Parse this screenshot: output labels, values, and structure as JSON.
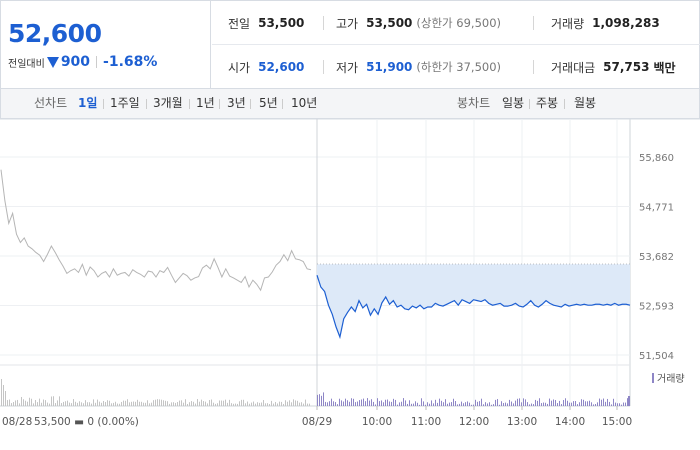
{
  "quote": {
    "current_price": "52,600",
    "change_label": "전일대비",
    "change_amount": "900",
    "change_rate": "-1.68%",
    "direction": "down",
    "colors": {
      "down": "#1d5fd2",
      "up": "#e5322d"
    }
  },
  "stats": {
    "prev_close_label": "전일",
    "prev_close": "53,500",
    "high_label": "고가",
    "high": "53,500",
    "upper_limit": "(상한가 69,500)",
    "volume_label": "거래량",
    "volume": "1,098,283",
    "open_label": "시가",
    "open": "52,600",
    "low_label": "저가",
    "low": "51,900",
    "lower_limit": "(하한가 37,500)",
    "amount_label": "거래대금",
    "amount": "57,753",
    "amount_unit": "백만"
  },
  "period_bar": {
    "line_chart_label": "선차트",
    "line_periods": [
      "1일",
      "1주일",
      "3개월",
      "1년",
      "3년",
      "5년",
      "10년"
    ],
    "active_period": "1일",
    "candle_chart_label": "봉차트",
    "candle_periods": [
      "일봉",
      "주봉",
      "월봉"
    ]
  },
  "chart_data": {
    "type": "line",
    "y_ticks": [
      "55,860",
      "54,771",
      "53,682",
      "52,593",
      "51,504"
    ],
    "ylim": [
      51504,
      55860
    ],
    "x_ticks": [
      "08/29",
      "10:00",
      "11:00",
      "12:00",
      "13:00",
      "14:00",
      "15:00"
    ],
    "prev_day_label": "08/28",
    "prev_day_summary": "53,500 ▬ 0 (0.00%)",
    "volume_legend": "거래량",
    "prev_close": 53500,
    "prev_day_series": {
      "color": "#b5b5b5",
      "values": [
        55580,
        54900,
        54400,
        54620,
        54160,
        53980,
        54080,
        53900,
        53840,
        53760,
        53700,
        53560,
        53720,
        53900,
        53760,
        53600,
        53460,
        53300,
        53360,
        53400,
        53320,
        53500,
        53260,
        53440,
        53360,
        53220,
        53300,
        53340,
        53220,
        53400,
        53260,
        53300,
        53320,
        53240,
        53380,
        53320,
        53280,
        53220,
        53350,
        53330,
        53220,
        53360,
        53320,
        53430,
        53260,
        53100,
        53200,
        53300,
        53250,
        53150,
        53200,
        53230,
        53420,
        53480,
        53400,
        53620,
        53430,
        53220,
        53400,
        53240,
        53200,
        53150,
        53100,
        53230,
        53000,
        53150,
        53060,
        52930,
        53200,
        53220,
        53330,
        53480,
        53560,
        53710,
        53580,
        53800,
        53620,
        53600,
        53560,
        53400,
        53380
      ]
    },
    "today_series": {
      "color": "#1d5fd2",
      "fill": "#dde9f8",
      "values": [
        53260,
        53000,
        52900,
        52600,
        52400,
        52120,
        51900,
        52300,
        52440,
        52560,
        52460,
        52700,
        52540,
        52620,
        52380,
        52520,
        52400,
        52650,
        52780,
        52620,
        52700,
        52560,
        52600,
        52520,
        52500,
        52580,
        52540,
        52600,
        52520,
        52560,
        52560,
        52640,
        52600,
        52580,
        52620,
        52660,
        52700,
        52600,
        52720,
        52680,
        52640,
        52720,
        52700,
        52680,
        52720,
        52640,
        52600,
        52620,
        52640,
        52580,
        52580,
        52600,
        52640,
        52580,
        52560,
        52620,
        52700,
        52600,
        52560,
        52620,
        52700,
        52640,
        52600,
        52580,
        52560,
        52620,
        52580,
        52600,
        52620,
        52600,
        52620,
        52600,
        52600,
        52620,
        52620,
        52600,
        52620,
        52600,
        52640,
        52600,
        52620,
        52620,
        52600
      ]
    },
    "volume_colors": {
      "prev": "#c4c4c4",
      "today": "#8e86c6"
    }
  }
}
